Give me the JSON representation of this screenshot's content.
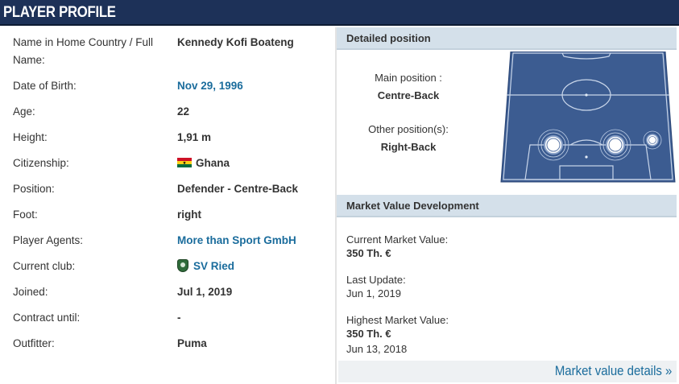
{
  "header": {
    "title": "PLAYER PROFILE"
  },
  "profile": {
    "rows": [
      {
        "label": "Name in Home Country / Full Name:",
        "value": "Kennedy Kofi Boateng",
        "link": false
      },
      {
        "label": "Date of Birth:",
        "value": "Nov 29, 1996",
        "link": true
      },
      {
        "label": "Age:",
        "value": "22",
        "link": false
      },
      {
        "label": "Height:",
        "value": "1,91 m",
        "link": false
      },
      {
        "label": "Citizenship:",
        "value": "Ghana",
        "link": false,
        "icon": "ghana-flag-icon"
      },
      {
        "label": "Position:",
        "value": "Defender - Centre-Back",
        "link": false
      },
      {
        "label": "Foot:",
        "value": "right",
        "link": false
      },
      {
        "label": "Player Agents:",
        "value": "More than Sport GmbH",
        "link": true
      },
      {
        "label": "Current club:",
        "value": "SV Ried",
        "link": true,
        "icon": "club-crest-icon"
      },
      {
        "label": "Joined:",
        "value": "Jul 1, 2019",
        "link": false
      },
      {
        "label": "Contract until:",
        "value": "-",
        "link": false
      },
      {
        "label": "Outfitter:",
        "value": "Puma",
        "link": false
      }
    ]
  },
  "detailed_position": {
    "title": "Detailed position",
    "main_label": "Main position :",
    "main_value": "Centre-Back",
    "other_label": "Other position(s):",
    "other_value": "Right-Back"
  },
  "market_value": {
    "title": "Market Value Development",
    "current_label": "Current Market Value:",
    "current_value": "350 Th. €",
    "update_label": "Last Update:",
    "update_date": "Jun 1, 2019",
    "highest_label": "Highest Market Value:",
    "highest_value": "350 Th. €",
    "highest_date": "Jun 13, 2018",
    "details_link": "Market value details »"
  },
  "colors": {
    "header_bg": "#1d3158",
    "section_head_bg": "#d4e0ea",
    "link": "#1a6c9c",
    "pitch": "#3c5c91"
  }
}
